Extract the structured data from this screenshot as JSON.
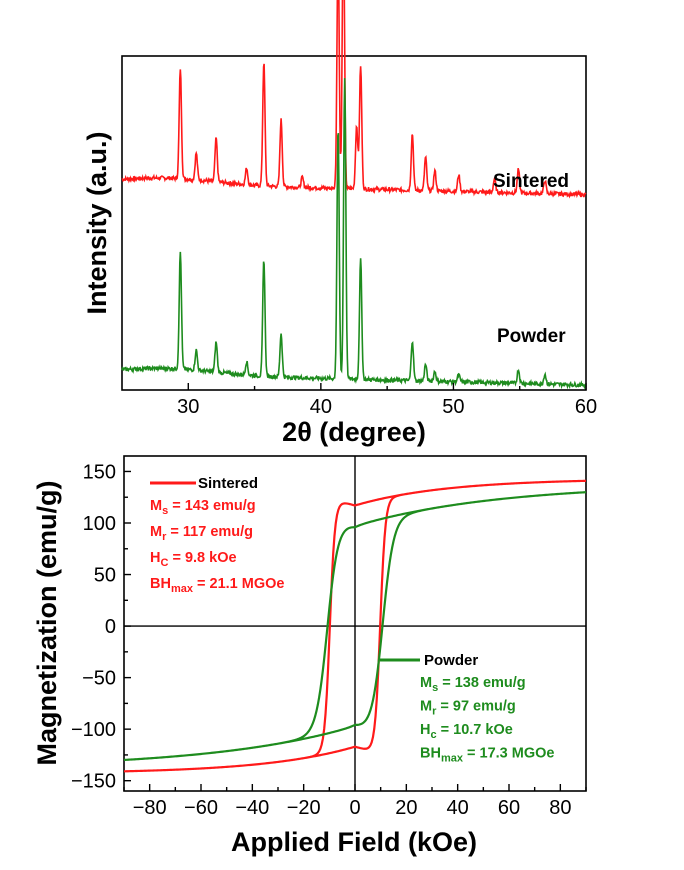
{
  "colors": {
    "sintered": "#ff1a1a",
    "powder": "#1e8c1e"
  },
  "chart_data": [
    {
      "type": "line",
      "xlabel": "2θ (degree)",
      "ylabel": "Intensity (a.u.)",
      "xlim": [
        25,
        60
      ],
      "xticks": [
        30,
        40,
        50,
        60
      ],
      "y_ticks_shown": false,
      "series": [
        {
          "name": "Sintered",
          "color": "#ff1a1a",
          "baseline": 0.62,
          "peaks": [
            {
              "x": 29.4,
              "h": 0.33
            },
            {
              "x": 30.6,
              "h": 0.08
            },
            {
              "x": 32.1,
              "h": 0.13
            },
            {
              "x": 34.4,
              "h": 0.05
            },
            {
              "x": 35.7,
              "h": 0.37
            },
            {
              "x": 37.0,
              "h": 0.2
            },
            {
              "x": 38.6,
              "h": 0.03
            },
            {
              "x": 41.3,
              "h": 0.72
            },
            {
              "x": 41.7,
              "h": 0.82
            },
            {
              "x": 42.7,
              "h": 0.19
            },
            {
              "x": 43.0,
              "h": 0.37
            },
            {
              "x": 46.9,
              "h": 0.17
            },
            {
              "x": 47.9,
              "h": 0.1
            },
            {
              "x": 48.6,
              "h": 0.06
            },
            {
              "x": 50.4,
              "h": 0.05
            },
            {
              "x": 53.1,
              "h": 0.04
            },
            {
              "x": 54.9,
              "h": 0.07
            },
            {
              "x": 56.9,
              "h": 0.04
            }
          ]
        },
        {
          "name": "Powder",
          "color": "#1e8c1e",
          "baseline": 0.05,
          "peaks": [
            {
              "x": 29.4,
              "h": 0.35
            },
            {
              "x": 30.6,
              "h": 0.06
            },
            {
              "x": 32.1,
              "h": 0.09
            },
            {
              "x": 34.4,
              "h": 0.04
            },
            {
              "x": 35.7,
              "h": 0.35
            },
            {
              "x": 37.0,
              "h": 0.13
            },
            {
              "x": 41.3,
              "h": 0.75
            },
            {
              "x": 41.8,
              "h": 0.9
            },
            {
              "x": 43.0,
              "h": 0.36
            },
            {
              "x": 46.9,
              "h": 0.12
            },
            {
              "x": 47.9,
              "h": 0.05
            },
            {
              "x": 48.6,
              "h": 0.03
            },
            {
              "x": 50.4,
              "h": 0.02
            },
            {
              "x": 54.9,
              "h": 0.04
            },
            {
              "x": 56.9,
              "h": 0.03
            }
          ]
        }
      ]
    },
    {
      "type": "line",
      "xlabel": "Applied Field (kOe)",
      "ylabel": "Magnetization (emu/g)",
      "xlim": [
        -90,
        90
      ],
      "ylim": [
        -160,
        165
      ],
      "xticks": [
        -80,
        -60,
        -40,
        -20,
        0,
        20,
        40,
        60,
        80
      ],
      "yticks": [
        -150,
        -100,
        -50,
        0,
        50,
        100,
        150
      ],
      "zero_lines": true,
      "series": [
        {
          "name": "Sintered",
          "color": "#ff1a1a",
          "Ms": 143,
          "Mr": 117,
          "Hc": 9.8,
          "stats": [
            {
              "sym": "M",
              "sub": "s",
              "val": " = 143 emu/g"
            },
            {
              "sym": "M",
              "sub": "r",
              "val": " = 117 emu/g"
            },
            {
              "sym": "H",
              "sub": "C",
              "val": " = 9.8 kOe"
            },
            {
              "sym": "BH",
              "sub": "max",
              "val": " = 21.1 MGOe"
            }
          ]
        },
        {
          "name": "Powder",
          "color": "#1e8c1e",
          "Ms": 138,
          "Mr": 97,
          "Hc": 10.7,
          "stats": [
            {
              "sym": "M",
              "sub": "s",
              "val": " = 138 emu/g"
            },
            {
              "sym": "M",
              "sub": "r",
              "val": " = 97 emu/g"
            },
            {
              "sym": "H",
              "sub": "c",
              "val": " = 10.7 kOe"
            },
            {
              "sym": "BH",
              "sub": "max",
              "val": " = 17.3 MGOe"
            }
          ]
        }
      ]
    }
  ]
}
